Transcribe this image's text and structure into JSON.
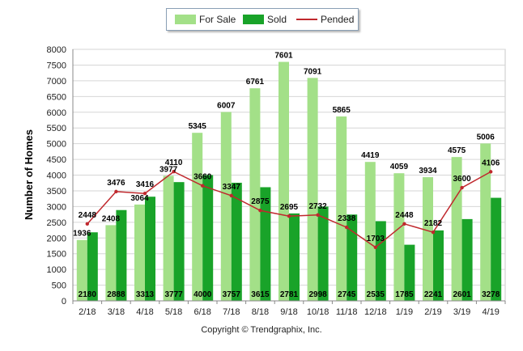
{
  "chart_data": {
    "type": "bar",
    "ylabel": "Number of Homes",
    "xlabel": "",
    "ylim": [
      0,
      8000
    ],
    "yticks": [
      0,
      500,
      1000,
      1500,
      2000,
      2500,
      3000,
      3500,
      4000,
      4500,
      5000,
      5500,
      6000,
      6500,
      7000,
      7500,
      8000
    ],
    "categories": [
      "2/18",
      "3/18",
      "4/18",
      "5/18",
      "6/18",
      "7/18",
      "8/18",
      "9/18",
      "10/18",
      "11/18",
      "12/18",
      "1/19",
      "2/19",
      "3/19",
      "4/19"
    ],
    "series": [
      {
        "name": "For Sale",
        "kind": "bar",
        "color": "#a3e088",
        "values": [
          1936,
          2408,
          3064,
          3977,
          5345,
          6007,
          6761,
          7601,
          7091,
          5865,
          4419,
          4059,
          3934,
          4575,
          5006
        ]
      },
      {
        "name": "Sold",
        "kind": "bar",
        "color": "#19a329",
        "values": [
          2180,
          2888,
          3313,
          3777,
          4000,
          3757,
          3615,
          2781,
          2998,
          2745,
          2535,
          1785,
          2241,
          2601,
          3278
        ]
      },
      {
        "name": "Pended",
        "kind": "line",
        "color": "#c0282d",
        "values": [
          2448,
          3476,
          3416,
          4110,
          3660,
          3347,
          2875,
          2695,
          2732,
          2338,
          1703,
          2448,
          2182,
          3600,
          4106
        ]
      }
    ],
    "grid": true,
    "legend_position": "top"
  },
  "legend": {
    "for_sale": "For Sale",
    "sold": "Sold",
    "pended": "Pended"
  },
  "footer": {
    "copyright": "Copyright © Trendgraphix, Inc."
  }
}
